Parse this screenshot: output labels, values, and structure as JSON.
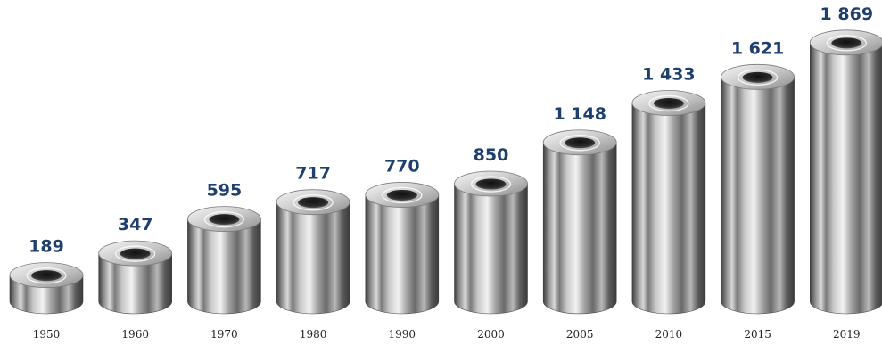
{
  "chart_data": {
    "type": "bar",
    "title": "",
    "xlabel": "",
    "ylabel": "",
    "categories": [
      "1950",
      "1960",
      "1970",
      "1980",
      "1990",
      "2000",
      "2005",
      "2010",
      "2015",
      "2019"
    ],
    "values": [
      189,
      347,
      595,
      717,
      770,
      850,
      1148,
      1433,
      1621,
      1869
    ],
    "value_labels": [
      "189",
      "347",
      "595",
      "717",
      "770",
      "850",
      "1 148",
      "1 433",
      "1 621",
      "1 869"
    ],
    "ylim": [
      0,
      1900
    ],
    "grid": false,
    "legend": "none",
    "colors": {
      "value_label": "#1f3f6e",
      "category_label": "#222222",
      "metal_dark": "#4a4a4a",
      "metal_mid": "#9b9b9b",
      "metal_light": "#e8e8e8",
      "background": "#ffffff"
    }
  }
}
